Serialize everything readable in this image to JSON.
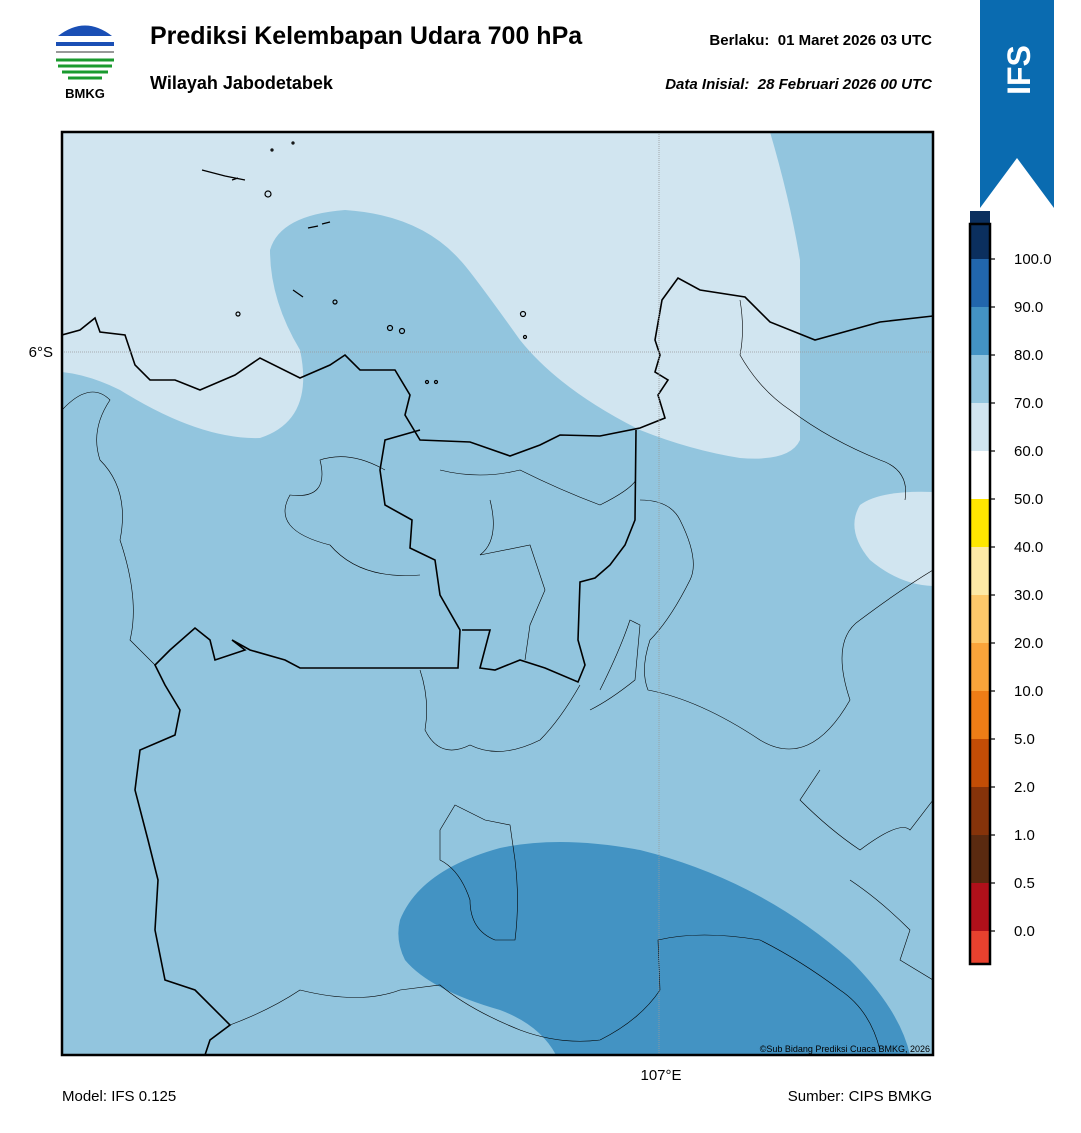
{
  "header": {
    "title": "Prediksi Kelembapan Udara 700 hPa",
    "subtitle": "Wilayah Jabodetabek",
    "valid": "Berlaku:  01 Maret 2026 03 UTC",
    "init": "Data Inisial:  28 Februari 2026 00 UTC",
    "logo": "BMKG",
    "badge": "IFS"
  },
  "map": {
    "lat_label": "6°S",
    "lon_label": "107°E",
    "credit": "©Sub Bidang Prediksi Cuaca BMKG, 2026"
  },
  "colorbar": {
    "labels": [
      "0.0",
      "0.5",
      "1.0",
      "2.0",
      "5.0",
      "10.0",
      "20.0",
      "30.0",
      "40.0",
      "50.0",
      "60.0",
      "70.0",
      "80.0",
      "90.0",
      "100.0"
    ],
    "colors": [
      "#e8412e",
      "#b0101a",
      "#5a2a10",
      "#85330a",
      "#c24d06",
      "#ee7d16",
      "#faa43a",
      "#fdc86a",
      "#fde9a6",
      "#ffe600",
      "#ffffff",
      "#d1e5f0",
      "#92c5de",
      "#4393c3",
      "#2166ac",
      "#0b2f5e",
      "#2a0a4a"
    ]
  },
  "footer": {
    "model": "Model: IFS 0.125",
    "source": "Sumber: CIPS BMKG"
  }
}
